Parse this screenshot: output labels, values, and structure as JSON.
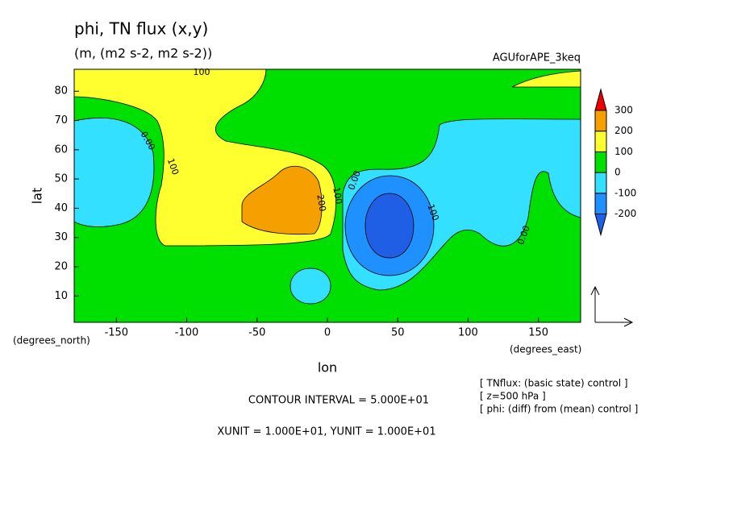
{
  "chart_data": {
    "type": "contour",
    "title": "phi, TN flux (x,y)",
    "subtitle": "(m, (m2 s-2, m2 s-2))",
    "experiment": "AGUforAPE_3keq",
    "x_label": "lon",
    "y_label": "lat",
    "x_units": "(degrees_east)",
    "y_units": "(degrees_north)",
    "xlim": [
      -180,
      180
    ],
    "xticks": [
      -150,
      -100,
      -50,
      0,
      50,
      100,
      150
    ],
    "ylim": [
      1,
      87.5
    ],
    "yticks": [
      10,
      20,
      30,
      40,
      50,
      60,
      70,
      80
    ],
    "levels": [
      -200,
      -100,
      0,
      100,
      200,
      300
    ],
    "colors": [
      "#1e5fe6",
      "#1e90ff",
      "#33e0ff",
      "#00e000",
      "#ffff30",
      "#f5a000",
      "#f00000"
    ],
    "contour_labels": [
      "100",
      "0.00",
      "100",
      "200",
      "100",
      "0.00",
      "-100",
      "0.00"
    ],
    "contour_interval": "CONTOUR INTERVAL = 5.000E+01",
    "units_note": "XUNIT = 1.000E+01, YUNIT = 1.000E+01",
    "notes": [
      "[ TNflux: (basic state) control ]",
      "[ z=500 hPa ]",
      "[ phi: (diff) from (mean) control ]"
    ]
  }
}
